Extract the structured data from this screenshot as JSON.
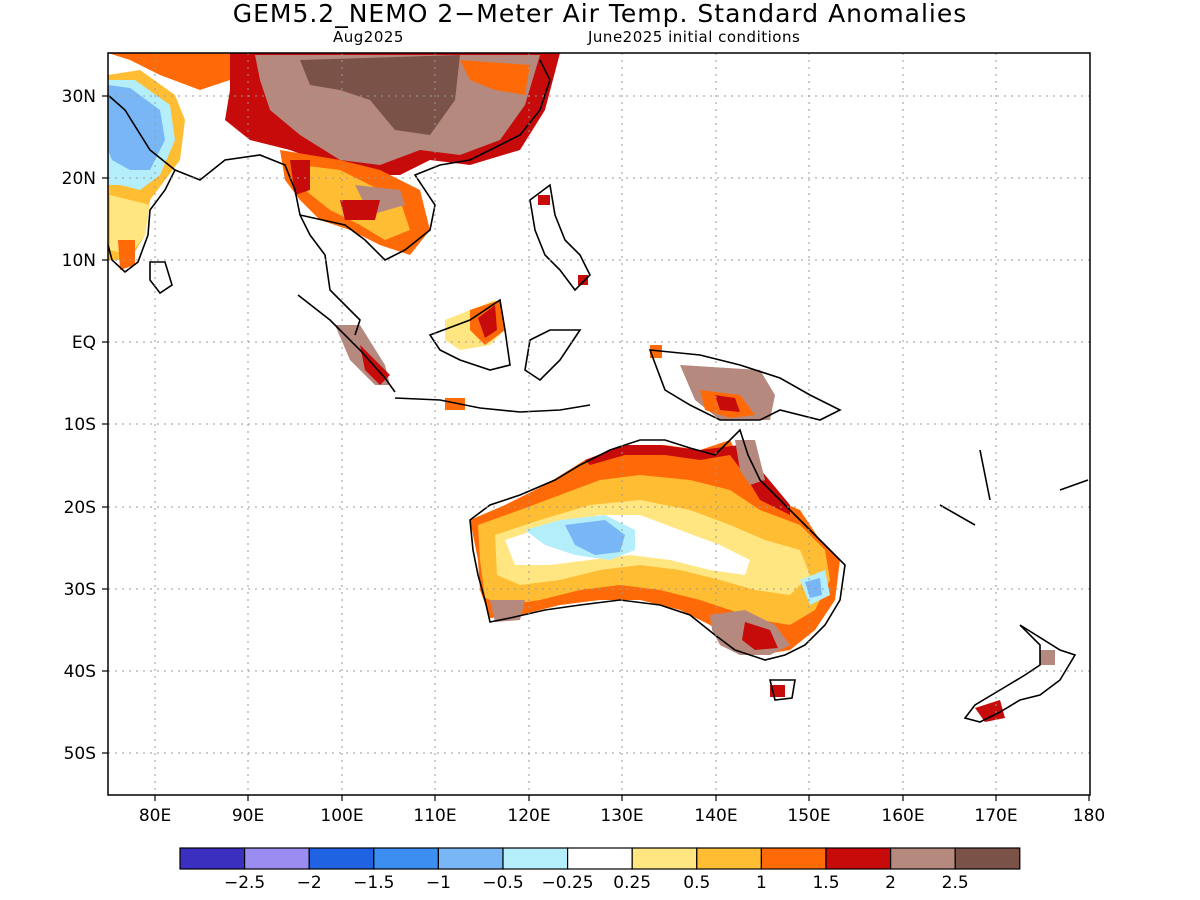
{
  "title": "GEM5.2_NEMO 2−Meter Air Temp. Standard Anomalies",
  "subtitle_left": "Aug2025",
  "subtitle_right": "June2025 initial conditions",
  "map": {
    "lon_range": [
      75,
      180
    ],
    "lat_range": [
      -55,
      35
    ],
    "grid": "dotted",
    "lat_labels": [
      "30N",
      "20N",
      "10N",
      "EQ",
      "10S",
      "20S",
      "30S",
      "40S",
      "50S"
    ],
    "lon_labels": [
      "80E",
      "90E",
      "100E",
      "110E",
      "120E",
      "130E",
      "140E",
      "150E",
      "160E",
      "170E",
      "180"
    ]
  },
  "legend": {
    "colors": [
      "#3a2fbf",
      "#9b8cf2",
      "#1f63e3",
      "#3c8ff0",
      "#78b6f5",
      "#b3eefa",
      "#ffffff",
      "#ffe680",
      "#ffbd33",
      "#ff6a08",
      "#c70a0a",
      "#b5897e",
      "#7a5248"
    ],
    "labels": [
      "−2.5",
      "−2",
      "−1.5",
      "−1",
      "−0.5",
      "−0.25",
      "0.25",
      "0.5",
      "1",
      "1.5",
      "2",
      "2.5"
    ]
  }
}
